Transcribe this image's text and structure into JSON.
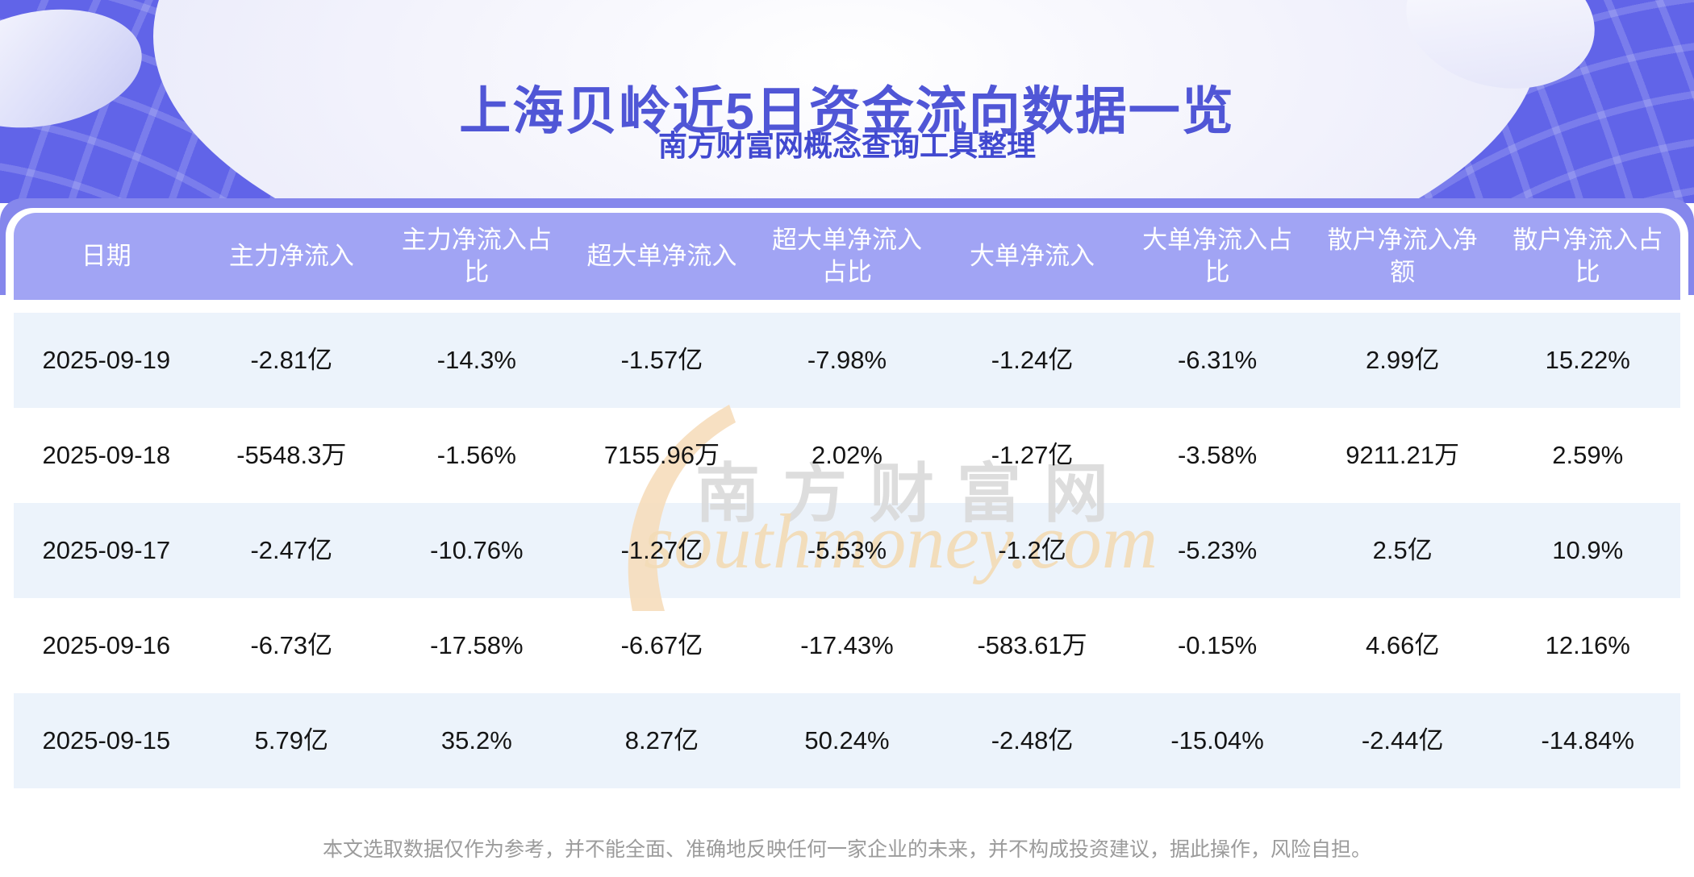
{
  "header": {
    "title": "上海贝岭近5日资金流向数据一览",
    "subtitle": "南方财富网概念查询工具整理"
  },
  "table": {
    "columns": [
      "日期",
      "主力净流入",
      "主力净流入占比",
      "超大单净流入",
      "超大单净流入占比",
      "大单净流入",
      "大单净流入占比",
      "散户净流入净额",
      "散户净流入占比"
    ],
    "rows": [
      [
        "2025-09-19",
        "-2.81亿",
        "-14.3%",
        "-1.57亿",
        "-7.98%",
        "-1.24亿",
        "-6.31%",
        "2.99亿",
        "15.22%"
      ],
      [
        "2025-09-18",
        "-5548.3万",
        "-1.56%",
        "7155.96万",
        "2.02%",
        "-1.27亿",
        "-3.58%",
        "9211.21万",
        "2.59%"
      ],
      [
        "2025-09-17",
        "-2.47亿",
        "-10.76%",
        "-1.27亿",
        "-5.53%",
        "-1.2亿",
        "-5.23%",
        "2.5亿",
        "10.9%"
      ],
      [
        "2025-09-16",
        "-6.73亿",
        "-17.58%",
        "-6.67亿",
        "-17.43%",
        "-583.61万",
        "-0.15%",
        "4.66亿",
        "12.16%"
      ],
      [
        "2025-09-15",
        "5.79亿",
        "35.2%",
        "8.27亿",
        "50.24%",
        "-2.48亿",
        "-15.04%",
        "-2.44亿",
        "-14.84%"
      ]
    ]
  },
  "watermark": {
    "cn": "南方财富网",
    "en": "southmoney.com"
  },
  "footer": {
    "disclaimer": "本文选取数据仅作为参考，并不能全面、准确地反映任何一家企业的未来，并不构成投资建议，据此操作，风险自担。"
  },
  "colors": {
    "banner_purple": "#6164e8",
    "table_header_purple": "#a1a4f4",
    "card_band_purple": "#8587ec",
    "row_alt_blue": "#ecf3fb",
    "title_blue": "#5056d6",
    "watermark_tan": "#f3dcb8",
    "watermark_grey": "#d9d9d9"
  },
  "chart_data": {
    "type": "table",
    "title": "上海贝岭近5日资金流向数据一览",
    "subtitle": "南方财富网概念查询工具整理",
    "columns": [
      "日期",
      "主力净流入",
      "主力净流入占比",
      "超大单净流入",
      "超大单净流入占比",
      "大单净流入",
      "大单净流入占比",
      "散户净流入净额",
      "散户净流入占比"
    ],
    "rows": [
      [
        "2025-09-19",
        "-2.81亿",
        "-14.3%",
        "-1.57亿",
        "-7.98%",
        "-1.24亿",
        "-6.31%",
        "2.99亿",
        "15.22%"
      ],
      [
        "2025-09-18",
        "-5548.3万",
        "-1.56%",
        "7155.96万",
        "2.02%",
        "-1.27亿",
        "-3.58%",
        "9211.21万",
        "2.59%"
      ],
      [
        "2025-09-17",
        "-2.47亿",
        "-10.76%",
        "-1.27亿",
        "-5.53%",
        "-1.2亿",
        "-5.23%",
        "2.5亿",
        "10.9%"
      ],
      [
        "2025-09-16",
        "-6.73亿",
        "-17.58%",
        "-6.67亿",
        "-17.43%",
        "-583.61万",
        "-0.15%",
        "4.66亿",
        "12.16%"
      ],
      [
        "2025-09-15",
        "5.79亿",
        "35.2%",
        "8.27亿",
        "50.24%",
        "-2.48亿",
        "-15.04%",
        "-2.44亿",
        "-14.84%"
      ]
    ],
    "notes": "本文选取数据仅作为参考，并不能全面、准确地反映任何一家企业的未来，并不构成投资建议，据此操作，风险自担。"
  }
}
